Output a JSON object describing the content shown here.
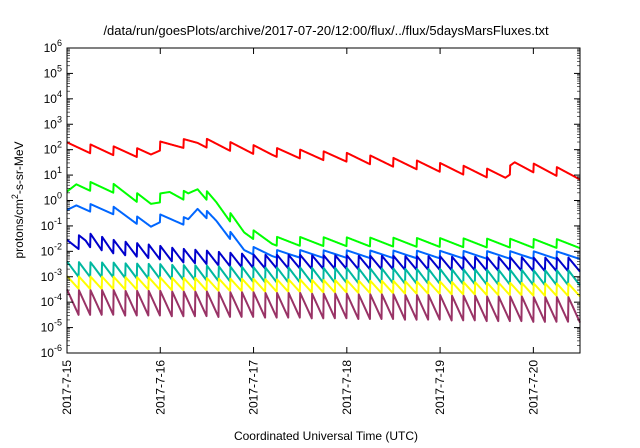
{
  "chart_data": {
    "type": "line",
    "title": "/data/run/goesPlots/archive/2017-07-20/12:00/flux/../flux/5daysMarsFluxes.txt",
    "xlabel": "Coordinated Universal Time (UTC)",
    "ylabel_main": "protons/cm",
    "ylabel_sup": "2",
    "ylabel_rest": "-s-sr-MeV",
    "x_tick_labels": [
      "2017-7-15",
      "2017-7-16",
      "2017-7-17",
      "2017-7-18",
      "2017-7-19",
      "2017-7-20"
    ],
    "xlim": [
      0,
      5.5
    ],
    "y_scale": "log",
    "ylim_exponent": [
      -6,
      6
    ],
    "y_tick_exponents": [
      6,
      5,
      4,
      3,
      2,
      1,
      0,
      -1,
      -2,
      -3,
      -4,
      -5,
      -6
    ],
    "grid": false,
    "legend": "none",
    "series": [
      {
        "color": "#ff0000",
        "anchors": [
          [
            0,
            130
          ],
          [
            0.5,
            90
          ],
          [
            0.9,
            70
          ],
          [
            1.0,
            140
          ],
          [
            1.4,
            200
          ],
          [
            2.2,
            80
          ],
          [
            3.0,
            50
          ],
          [
            4.0,
            20
          ],
          [
            4.7,
            10
          ],
          [
            4.8,
            25
          ],
          [
            5.5,
            10
          ]
        ]
      },
      {
        "color": "#00ff00",
        "anchors": [
          [
            0,
            1.5
          ],
          [
            0.1,
            4
          ],
          [
            0.5,
            3
          ],
          [
            0.9,
            0.8
          ],
          [
            1.1,
            2
          ],
          [
            1.3,
            1.5
          ],
          [
            1.4,
            3
          ],
          [
            1.6,
            0.8
          ],
          [
            1.9,
            0.06
          ],
          [
            2.2,
            0.025
          ],
          [
            5.5,
            0.02
          ]
        ]
      },
      {
        "color": "#0066ff",
        "anchors": [
          [
            0,
            0.3
          ],
          [
            0.1,
            0.6
          ],
          [
            0.5,
            0.4
          ],
          [
            0.9,
            0.1
          ],
          [
            1.0,
            0.2
          ],
          [
            1.3,
            0.15
          ],
          [
            1.4,
            0.5
          ],
          [
            1.6,
            0.15
          ],
          [
            1.9,
            0.012
          ],
          [
            2.2,
            0.008
          ],
          [
            5.5,
            0.007
          ]
        ]
      },
      {
        "color": "#0000cc",
        "anchors": [
          [
            0,
            0.015
          ],
          [
            0.2,
            0.03
          ],
          [
            0.5,
            0.015
          ],
          [
            1.2,
            0.007
          ],
          [
            2.0,
            0.004
          ],
          [
            5.5,
            0.003
          ]
        ]
      },
      {
        "color": "#00b8a0",
        "anchors": [
          [
            0,
            0.002
          ],
          [
            0.5,
            0.0018
          ],
          [
            2.0,
            0.0012
          ],
          [
            5.5,
            0.0009
          ]
        ]
      },
      {
        "color": "#ffff00",
        "anchors": [
          [
            0,
            0.0006
          ],
          [
            5.5,
            0.0003
          ]
        ]
      },
      {
        "color": "#993366",
        "anchors": [
          [
            0,
            0.0001
          ],
          [
            5.5,
            5e-05
          ]
        ]
      }
    ]
  }
}
